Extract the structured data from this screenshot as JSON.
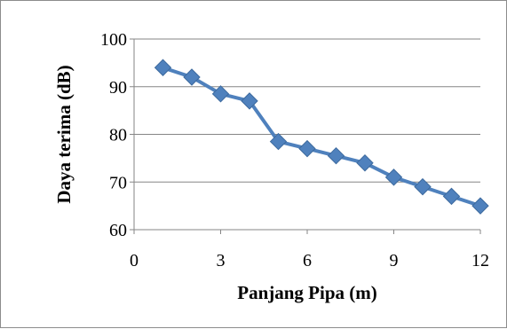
{
  "chart_data": {
    "type": "line",
    "xlabel": "Panjang Pipa (m)",
    "ylabel": "Daya terima  (dB)",
    "xlim": [
      0,
      12
    ],
    "ylim": [
      60,
      100
    ],
    "xticks": [
      0,
      3,
      6,
      9,
      12
    ],
    "yticks": [
      60,
      70,
      80,
      90,
      100
    ],
    "grid": "horizontal",
    "legend": "none",
    "series": [
      {
        "color": "#4f81bd",
        "marker": "diamond",
        "x": [
          1,
          2,
          3,
          4,
          5,
          6,
          7,
          8,
          9,
          10,
          11,
          12
        ],
        "y": [
          94,
          92,
          88.5,
          87,
          78.5,
          77,
          75.5,
          74,
          71,
          69,
          67,
          65
        ]
      }
    ]
  }
}
